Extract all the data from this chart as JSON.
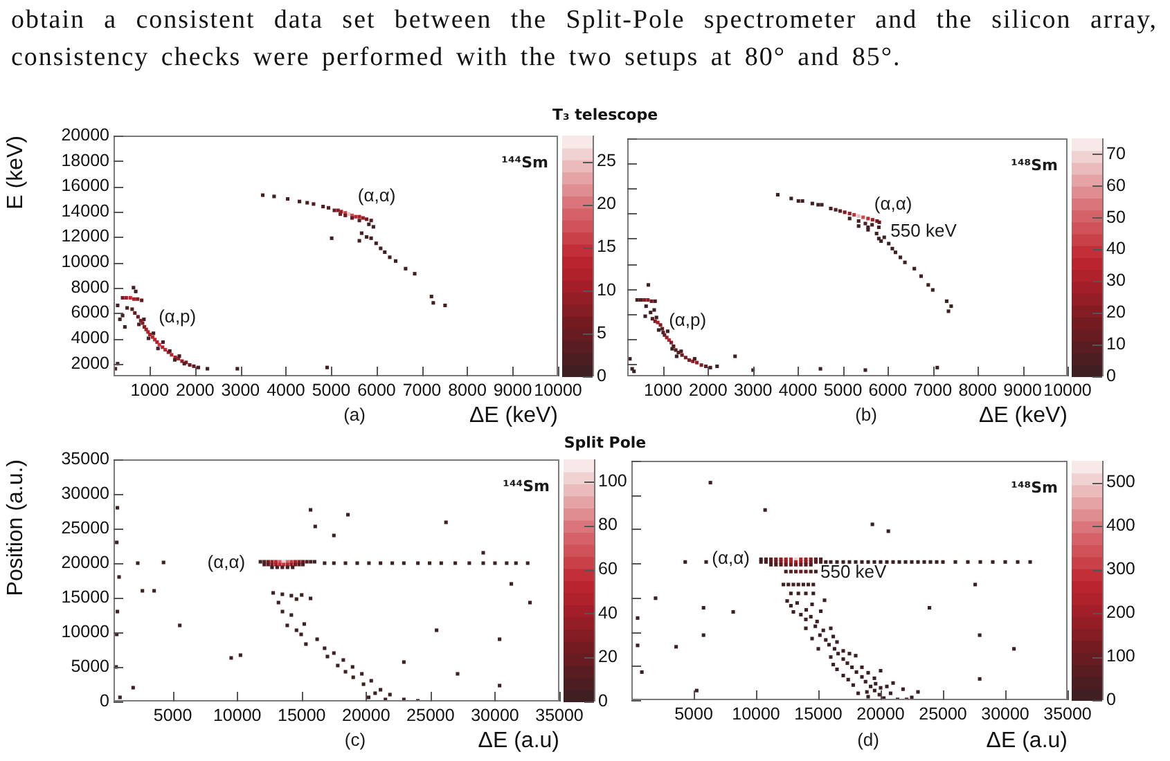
{
  "chart_data": [
    {
      "type": "other",
      "annotations": [
        "obtain a consistent data set between the Split-Pole spectrometer and the silicon array, consistency checks were performed with the two setups at 80° and 85°."
      ]
    },
    {
      "type": "scatter",
      "title": "T₃ telescope",
      "xlabel": "ΔE (keV)",
      "ylabel": "E (keV)",
      "xlim": [
        200,
        10000
      ],
      "ylim": [
        1000,
        20000
      ],
      "xticks": [
        1000,
        2000,
        3000,
        4000,
        5000,
        6000,
        7000,
        8000,
        9000,
        10000
      ],
      "yticks": [
        2000,
        4000,
        6000,
        8000,
        10000,
        12000,
        14000,
        16000,
        18000,
        20000
      ],
      "clim": [
        0,
        28
      ],
      "cticks": [
        0,
        5,
        10,
        15,
        20,
        25
      ],
      "marker": "square",
      "annotations": [
        "¹⁴⁴Sm",
        "(a)",
        "(α,α)",
        "(α,p)"
      ],
      "x": [
        3490,
        3740,
        4040,
        4300,
        4470,
        4610,
        4820,
        4940,
        5070,
        5150,
        5220,
        5310,
        5390,
        5460,
        5540,
        5620,
        5700,
        5780,
        5880,
        5310,
        5460,
        5200,
        5620,
        5830,
        5930,
        5780,
        5880,
        5990,
        6090,
        6180,
        6290,
        6420,
        6640,
        6840,
        7210,
        7250,
        7510,
        5010,
        5620,
        5670,
        400,
        480,
        570,
        650,
        730,
        820,
        640,
        690,
        340,
        400,
        290,
        500,
        450,
        610,
        670,
        740,
        800,
        840,
        880,
        920,
        960,
        1000,
        1060,
        1110,
        1160,
        1210,
        1280,
        1340,
        1410,
        1480,
        1560,
        1630,
        1710,
        1800,
        1880,
        1970,
        2070,
        760,
        870,
        970,
        1080,
        1180,
        1290,
        1440,
        1550,
        1650,
        1760,
        2270,
        2930,
        4910,
        290,
        240
      ],
      "values": [
        15300,
        15200,
        15000,
        14800,
        14700,
        14600,
        14400,
        14300,
        14100,
        14100,
        14000,
        13900,
        13800,
        13700,
        13600,
        13600,
        13500,
        13400,
        13300,
        13700,
        13500,
        13800,
        13300,
        13000,
        12800,
        12000,
        11900,
        11500,
        11100,
        10800,
        10400,
        10100,
        9500,
        9100,
        7300,
        6800,
        6600,
        11900,
        11700,
        12300,
        7200,
        7200,
        7200,
        7100,
        7100,
        7000,
        8000,
        7700,
        5500,
        5800,
        6600,
        6400,
        4900,
        6300,
        6000,
        5700,
        5400,
        5200,
        4900,
        4700,
        4500,
        4300,
        4100,
        3900,
        3700,
        3500,
        3300,
        3100,
        2900,
        2700,
        2500,
        2400,
        2200,
        2100,
        1900,
        1800,
        1700,
        5100,
        5500,
        4000,
        4400,
        3200,
        3700,
        3000,
        2300,
        2600,
        2000,
        1600,
        1600,
        1700,
        2000,
        1600
      ],
      "cvalues": [
        1,
        1,
        2,
        1,
        2,
        2,
        3,
        4,
        5,
        8,
        10,
        16,
        25,
        17,
        14,
        11,
        9,
        6,
        3,
        6,
        5,
        7,
        4,
        1,
        1,
        1,
        1,
        1,
        1,
        1,
        1,
        1,
        1,
        1,
        1,
        1,
        1,
        1,
        1,
        1,
        6,
        10,
        14,
        12,
        8,
        4,
        1,
        1,
        1,
        1,
        1,
        2,
        1,
        3,
        5,
        6,
        8,
        7,
        9,
        10,
        12,
        11,
        13,
        14,
        12,
        15,
        13,
        14,
        12,
        13,
        11,
        10,
        9,
        8,
        6,
        4,
        2,
        2,
        1,
        2,
        1,
        2,
        1,
        1,
        2,
        1,
        3,
        1,
        1,
        1,
        1,
        1
      ]
    },
    {
      "type": "scatter",
      "xlabel": "ΔE (keV)",
      "xlim": [
        200,
        10000
      ],
      "ylim": [
        1000,
        20000
      ],
      "xticks": [
        1000,
        2000,
        3000,
        4000,
        5000,
        6000,
        7000,
        8000,
        9000,
        10000
      ],
      "yticks": [
        2000,
        4000,
        6000,
        8000,
        10000,
        12000,
        14000,
        16000,
        18000,
        20000
      ],
      "tick_labels": "x",
      "clim": [
        0,
        75
      ],
      "cticks": [
        0,
        10,
        20,
        30,
        40,
        50,
        60,
        70
      ],
      "marker": "square",
      "annotations": [
        "¹⁴⁸Sm",
        "(b)",
        "(α,α)",
        "(α,p)",
        "550 keV"
      ],
      "x": [
        3550,
        3850,
        4010,
        4100,
        4320,
        4450,
        4530,
        4730,
        4840,
        4940,
        5040,
        5150,
        5250,
        5350,
        5450,
        5560,
        5660,
        5760,
        5810,
        5150,
        5350,
        5500,
        5650,
        5800,
        5560,
        5350,
        5560,
        5750,
        5920,
        5850,
        6020,
        6170,
        6280,
        6380,
        6590,
        6740,
        6900,
        7000,
        7310,
        7410,
        7350,
        5800,
        6100,
        420,
        500,
        580,
        660,
        740,
        820,
        670,
        620,
        720,
        600,
        800,
        850,
        760,
        820,
        880,
        940,
        980,
        1000,
        1030,
        1080,
        1130,
        1180,
        1230,
        1280,
        1340,
        1420,
        1500,
        1580,
        1660,
        1750,
        1850,
        1950,
        2050,
        900,
        1100,
        1200,
        1400,
        1300,
        1700,
        2200,
        310,
        260,
        350,
        2600,
        3000,
        4500,
        5500,
        7100
      ],
      "values": [
        15500,
        15200,
        15000,
        15000,
        14800,
        14700,
        14700,
        14400,
        14300,
        14200,
        14100,
        14000,
        13900,
        13800,
        13700,
        13600,
        13500,
        13400,
        13300,
        13600,
        13400,
        13200,
        13100,
        12900,
        12900,
        13000,
        12700,
        12400,
        12100,
        11800,
        11600,
        10900,
        10500,
        10100,
        9600,
        9000,
        8300,
        7900,
        7000,
        6600,
        6200,
        12000,
        11200,
        7100,
        7100,
        7100,
        7100,
        7000,
        7000,
        8300,
        6600,
        6100,
        5800,
        6300,
        5700,
        5600,
        5400,
        5300,
        5100,
        4800,
        4500,
        4300,
        4100,
        3900,
        3700,
        3400,
        3100,
        2900,
        2700,
        2500,
        2300,
        2200,
        2100,
        1900,
        1800,
        1700,
        4700,
        4600,
        3200,
        3000,
        2600,
        2400,
        1800,
        1600,
        2400,
        1400,
        2600,
        1500,
        1600,
        1500,
        1700
      ],
      "cvalues": [
        1,
        1,
        2,
        2,
        1,
        1,
        2,
        5,
        8,
        12,
        18,
        26,
        40,
        65,
        45,
        38,
        28,
        18,
        10,
        3,
        6,
        8,
        6,
        3,
        2,
        2,
        2,
        2,
        1,
        1,
        1,
        1,
        1,
        1,
        1,
        1,
        1,
        1,
        1,
        1,
        1,
        1,
        1,
        3,
        10,
        20,
        25,
        15,
        5,
        1,
        1,
        2,
        1,
        2,
        3,
        8,
        20,
        30,
        20,
        10,
        8,
        15,
        25,
        35,
        20,
        10,
        8,
        12,
        15,
        18,
        20,
        22,
        25,
        20,
        12,
        5,
        1,
        2,
        1,
        2,
        1,
        1,
        1,
        1,
        1,
        1,
        1,
        1,
        1,
        1,
        1
      ]
    },
    {
      "type": "scatter",
      "title": "Split Pole",
      "xlabel": "ΔE (a.u)",
      "ylabel": "Position (a.u.)",
      "xlim": [
        400,
        35000
      ],
      "ylim": [
        0,
        35000
      ],
      "xticks": [
        5000,
        10000,
        15000,
        20000,
        25000,
        30000,
        35000
      ],
      "yticks": [
        0,
        5000,
        10000,
        15000,
        20000,
        25000,
        30000,
        35000
      ],
      "clim": [
        0,
        110
      ],
      "cticks": [
        0,
        20,
        40,
        60,
        80,
        100
      ],
      "marker": "square",
      "annotations": [
        "¹⁴⁴Sm",
        "(c)",
        "(α,α)"
      ],
      "x": [
        11800,
        12100,
        12400,
        12700,
        13000,
        13300,
        13600,
        13900,
        14200,
        14500,
        14800,
        15100,
        15400,
        15700,
        16000,
        12100,
        12400,
        12700,
        13000,
        13300,
        13600,
        13900,
        14200,
        14500,
        14800,
        15100,
        12700,
        13100,
        13500,
        13900,
        14300,
        16780,
        17500,
        18400,
        19310,
        20220,
        21120,
        22030,
        22930,
        24020,
        24930,
        25830,
        26920,
        28010,
        29090,
        30000,
        30910,
        31630,
        32540,
        2280,
        4280,
        12790,
        13500,
        14200,
        15000,
        15690,
        13200,
        14600,
        13510,
        14200,
        13880,
        14600,
        15200,
        14960,
        15330,
        16200,
        16780,
        17500,
        17000,
        18230,
        18950,
        18400,
        19670,
        20400,
        19800,
        21120,
        20700,
        21850,
        22930,
        24020,
        20200,
        21500,
        19000,
        17800,
        15690,
        18590,
        16050,
        17500,
        26200,
        29090,
        31270,
        32720,
        30360,
        30360,
        25470,
        22930,
        27100,
        10250,
        9530,
        5540,
        3550,
        2640,
        830,
        700,
        650,
        1920,
        650,
        700,
        600,
        900
      ],
      "values": [
        20200,
        20200,
        20200,
        20200,
        20200,
        20200,
        20200,
        20200,
        20200,
        20200,
        20200,
        20200,
        20200,
        20200,
        20200,
        19800,
        19800,
        19800,
        19800,
        19800,
        19800,
        19800,
        19800,
        19800,
        19800,
        19800,
        19400,
        19400,
        19400,
        19400,
        19400,
        20000,
        20000,
        20000,
        20000,
        20000,
        20000,
        20000,
        20000,
        20000,
        20000,
        20000,
        20000,
        20000,
        20000,
        20000,
        20000,
        20000,
        20000,
        20000,
        20100,
        15700,
        15500,
        15300,
        15400,
        14900,
        14300,
        14800,
        13000,
        12500,
        11000,
        10300,
        11200,
        9700,
        8300,
        9000,
        7700,
        7000,
        6500,
        6000,
        5000,
        4300,
        4000,
        3000,
        2500,
        1700,
        1200,
        1000,
        300,
        100,
        600,
        300,
        3500,
        5200,
        27700,
        27000,
        25300,
        24000,
        25900,
        21500,
        17000,
        14300,
        9000,
        2300,
        10300,
        5700,
        4000,
        6700,
        6300,
        11000,
        16000,
        16000,
        18000,
        28000,
        23000,
        2000,
        9700,
        13000,
        5000,
        600
      ],
      "cvalues": [
        5,
        12,
        25,
        40,
        55,
        70,
        100,
        75,
        60,
        45,
        30,
        20,
        10,
        4,
        2,
        6,
        15,
        30,
        45,
        55,
        60,
        50,
        38,
        25,
        12,
        5,
        3,
        8,
        10,
        6,
        3,
        1,
        1,
        1,
        1,
        1,
        1,
        1,
        1,
        1,
        1,
        1,
        1,
        1,
        1,
        1,
        1,
        1,
        1,
        1,
        1,
        1,
        1,
        1,
        1,
        1,
        1,
        1,
        1,
        1,
        1,
        1,
        1,
        1,
        1,
        1,
        1,
        1,
        1,
        1,
        1,
        1,
        1,
        1,
        1,
        1,
        1,
        1,
        1,
        1,
        1,
        1,
        1,
        1,
        1,
        1,
        1,
        1,
        1,
        1,
        1,
        1,
        1,
        1,
        1,
        1,
        1,
        1,
        1,
        1,
        1,
        1,
        1,
        1,
        1,
        1,
        1,
        1,
        1,
        1
      ]
    },
    {
      "type": "scatter",
      "xlabel": "ΔE (a.u)",
      "xlim": [
        0,
        35000
      ],
      "ylim": [
        0,
        35000
      ],
      "xticks": [
        5000,
        10000,
        15000,
        20000,
        25000,
        30000,
        35000
      ],
      "yticks": [
        0,
        5000,
        10000,
        15000,
        20000,
        25000,
        30000,
        35000
      ],
      "tick_labels": "x",
      "clim": [
        0,
        550
      ],
      "cticks": [
        0,
        100,
        200,
        300,
        400,
        500
      ],
      "marker": "square",
      "annotations": [
        "¹⁴⁸Sm",
        "(d)",
        "(α,α)",
        "550 keV"
      ],
      "x": [
        10400,
        10800,
        11200,
        11600,
        12000,
        12400,
        12800,
        13200,
        13600,
        14000,
        14400,
        14800,
        15200,
        10400,
        10800,
        11200,
        11600,
        12000,
        12400,
        12800,
        13200,
        13600,
        14000,
        14400,
        14800,
        15200,
        15600,
        11200,
        11600,
        12000,
        12400,
        12800,
        13200,
        13600,
        14000,
        14400,
        16000,
        16500,
        17000,
        17500,
        18000,
        18500,
        19000,
        19500,
        20000,
        20500,
        21000,
        21500,
        22000,
        22500,
        23000,
        23500,
        24000,
        24500,
        25000,
        26000,
        27000,
        28000,
        29000,
        30000,
        31000,
        32000,
        4320,
        6000,
        12400,
        12800,
        13200,
        13600,
        14000,
        14400,
        14800,
        12200,
        12600,
        13000,
        13400,
        13800,
        14200,
        14600,
        12800,
        13400,
        14000,
        14600,
        13300,
        12800,
        14500,
        14030,
        13600,
        14400,
        14900,
        14760,
        15400,
        15130,
        15600,
        15860,
        16300,
        16590,
        17000,
        17330,
        17700,
        18060,
        18500,
        18790,
        19200,
        19520,
        19900,
        20260,
        21360,
        22090,
        18900,
        17400,
        20800,
        16200,
        6340,
        10730,
        19340,
        20620,
        1940,
        5790,
        8170,
        3590,
        5790,
        23920,
        27950,
        27590,
        30700,
        5240,
        840,
        27950,
        500,
        500,
        12500,
        15500,
        13000,
        15200,
        14000,
        14000,
        16000,
        16200,
        14500,
        16500,
        15000,
        17000,
        18000,
        16000,
        17500,
        16500,
        18500,
        19000,
        17000,
        19500,
        20000,
        17800,
        19000,
        20500,
        21000,
        21800,
        22500,
        18200,
        19600,
        23000,
        20000
      ],
      "values": [
        20600,
        20600,
        20600,
        20600,
        20600,
        20600,
        20600,
        20600,
        20600,
        20600,
        20600,
        20600,
        20600,
        20200,
        20200,
        20200,
        20200,
        20200,
        20200,
        20200,
        20200,
        20200,
        20200,
        20200,
        20200,
        20200,
        20200,
        19800,
        19800,
        19800,
        19800,
        19800,
        19800,
        19800,
        19800,
        19800,
        20200,
        20200,
        20200,
        20200,
        20200,
        20200,
        20200,
        20200,
        20200,
        20200,
        20200,
        20200,
        20200,
        20200,
        20200,
        20200,
        20200,
        20200,
        20200,
        20200,
        20200,
        20200,
        20200,
        20200,
        20200,
        20200,
        20200,
        20200,
        18800,
        18800,
        18800,
        18800,
        18800,
        18800,
        18800,
        16900,
        16900,
        16900,
        16900,
        16900,
        16900,
        16900,
        15600,
        15600,
        15600,
        15600,
        14200,
        13800,
        14000,
        13200,
        12500,
        12200,
        11500,
        10800,
        10200,
        9500,
        8800,
        8100,
        7500,
        6800,
        6000,
        5400,
        4800,
        4100,
        3400,
        2700,
        2000,
        1400,
        800,
        300,
        100,
        100,
        1200,
        3000,
        1000,
        5200,
        31800,
        27800,
        25700,
        24700,
        14900,
        13500,
        12900,
        7800,
        9500,
        13500,
        9500,
        16900,
        7500,
        1400,
        4100,
        3100,
        8000,
        12000,
        14500,
        14600,
        12900,
        13000,
        11800,
        10500,
        10500,
        9300,
        9000,
        8500,
        7500,
        7200,
        6500,
        6300,
        6800,
        4500,
        4800,
        4000,
        3600,
        3200,
        4300,
        2200,
        500,
        2000,
        2500,
        1600,
        400,
        1000,
        2400,
        1200,
        1800
      ],
      "cvalues": [
        20,
        50,
        90,
        140,
        180,
        220,
        260,
        500,
        250,
        200,
        150,
        100,
        50,
        10,
        30,
        70,
        110,
        150,
        190,
        220,
        240,
        210,
        170,
        120,
        70,
        40,
        15,
        15,
        35,
        60,
        90,
        110,
        120,
        100,
        70,
        35,
        15,
        8,
        10,
        6,
        8,
        5,
        6,
        4,
        5,
        3,
        4,
        3,
        3,
        2,
        3,
        2,
        2,
        2,
        2,
        1,
        1,
        1,
        1,
        1,
        1,
        1,
        1,
        1,
        30,
        60,
        90,
        100,
        80,
        40,
        15,
        10,
        20,
        25,
        30,
        25,
        20,
        10,
        3,
        5,
        4,
        2,
        2,
        1,
        1,
        1,
        1,
        1,
        1,
        1,
        1,
        1,
        1,
        1,
        1,
        1,
        1,
        1,
        1,
        2,
        1,
        1,
        2,
        1,
        1,
        2,
        1,
        1,
        1,
        1,
        1,
        1,
        1,
        1,
        1,
        1,
        1,
        1,
        1,
        1,
        1,
        1,
        1,
        1,
        1,
        1,
        1,
        1,
        1,
        1,
        1,
        1,
        1,
        1,
        1,
        1,
        1,
        1,
        1,
        1,
        1,
        1,
        1,
        1,
        1,
        1,
        1,
        1,
        1,
        1,
        1,
        1,
        1,
        1,
        1,
        1,
        1,
        1,
        1,
        1,
        1
      ]
    }
  ]
}
